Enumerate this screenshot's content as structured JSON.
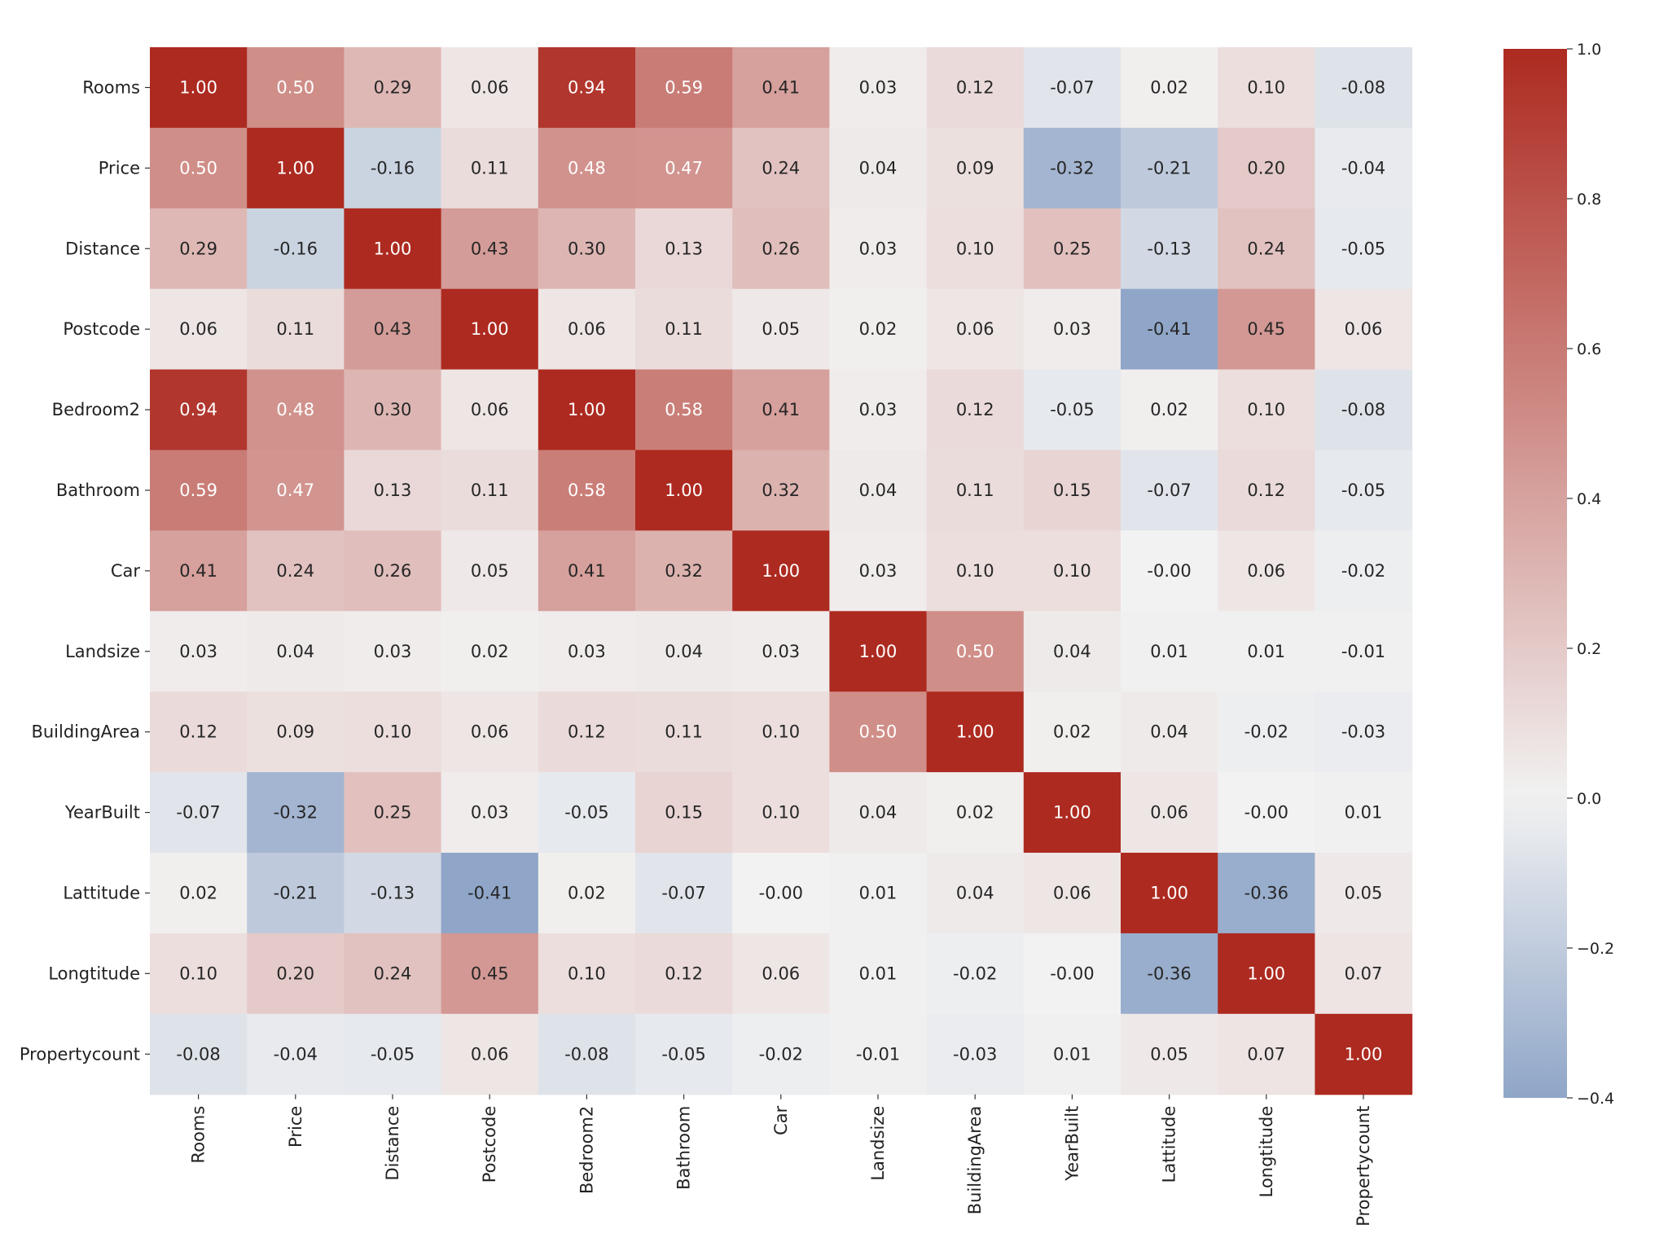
{
  "chart_data": {
    "type": "heatmap",
    "title": "",
    "xlabel": "",
    "ylabel": "",
    "labels": [
      "Rooms",
      "Price",
      "Distance",
      "Postcode",
      "Bedroom2",
      "Bathroom",
      "Car",
      "Landsize",
      "BuildingArea",
      "YearBuilt",
      "Lattitude",
      "Longtitude",
      "Propertycount"
    ],
    "matrix_display": [
      [
        "1.00",
        "0.50",
        "0.29",
        "0.06",
        "0.94",
        "0.59",
        "0.41",
        "0.03",
        "0.12",
        "-0.07",
        "0.02",
        "0.10",
        "-0.08"
      ],
      [
        "0.50",
        "1.00",
        "-0.16",
        "0.11",
        "0.48",
        "0.47",
        "0.24",
        "0.04",
        "0.09",
        "-0.32",
        "-0.21",
        "0.20",
        "-0.04"
      ],
      [
        "0.29",
        "-0.16",
        "1.00",
        "0.43",
        "0.30",
        "0.13",
        "0.26",
        "0.03",
        "0.10",
        "0.25",
        "-0.13",
        "0.24",
        "-0.05"
      ],
      [
        "0.06",
        "0.11",
        "0.43",
        "1.00",
        "0.06",
        "0.11",
        "0.05",
        "0.02",
        "0.06",
        "0.03",
        "-0.41",
        "0.45",
        "0.06"
      ],
      [
        "0.94",
        "0.48",
        "0.30",
        "0.06",
        "1.00",
        "0.58",
        "0.41",
        "0.03",
        "0.12",
        "-0.05",
        "0.02",
        "0.10",
        "-0.08"
      ],
      [
        "0.59",
        "0.47",
        "0.13",
        "0.11",
        "0.58",
        "1.00",
        "0.32",
        "0.04",
        "0.11",
        "0.15",
        "-0.07",
        "0.12",
        "-0.05"
      ],
      [
        "0.41",
        "0.24",
        "0.26",
        "0.05",
        "0.41",
        "0.32",
        "1.00",
        "0.03",
        "0.10",
        "0.10",
        "-0.00",
        "0.06",
        "-0.02"
      ],
      [
        "0.03",
        "0.04",
        "0.03",
        "0.02",
        "0.03",
        "0.04",
        "0.03",
        "1.00",
        "0.50",
        "0.04",
        "0.01",
        "0.01",
        "-0.01"
      ],
      [
        "0.12",
        "0.09",
        "0.10",
        "0.06",
        "0.12",
        "0.11",
        "0.10",
        "0.50",
        "1.00",
        "0.02",
        "0.04",
        "-0.02",
        "-0.03"
      ],
      [
        "-0.07",
        "-0.32",
        "0.25",
        "0.03",
        "-0.05",
        "0.15",
        "0.10",
        "0.04",
        "0.02",
        "1.00",
        "0.06",
        "-0.00",
        "0.01"
      ],
      [
        "0.02",
        "-0.21",
        "-0.13",
        "-0.41",
        "0.02",
        "-0.07",
        "-0.00",
        "0.01",
        "0.04",
        "0.06",
        "1.00",
        "-0.36",
        "0.05"
      ],
      [
        "0.10",
        "0.20",
        "0.24",
        "0.45",
        "0.10",
        "0.12",
        "0.06",
        "0.01",
        "-0.02",
        "-0.00",
        "-0.36",
        "1.00",
        "0.07"
      ],
      [
        "-0.08",
        "-0.04",
        "-0.05",
        "0.06",
        "-0.08",
        "-0.05",
        "-0.02",
        "-0.01",
        "-0.03",
        "0.01",
        "0.05",
        "0.07",
        "1.00"
      ]
    ],
    "colorbar": {
      "vmin": -0.4,
      "vmax": 1.0,
      "ticks": [
        1.0,
        0.8,
        0.6,
        0.4,
        0.2,
        0.0,
        -0.2,
        -0.4
      ],
      "tick_labels": [
        "1.0",
        "0.8",
        "0.6",
        "0.4",
        "0.2",
        "0.0",
        "−0.2",
        "−0.4"
      ]
    },
    "colors": {
      "negative": "#8fa6c8",
      "neutral": "#f2f2f2",
      "positive": "#ad2a20"
    },
    "grid": false,
    "legend": "colorbar-right"
  }
}
